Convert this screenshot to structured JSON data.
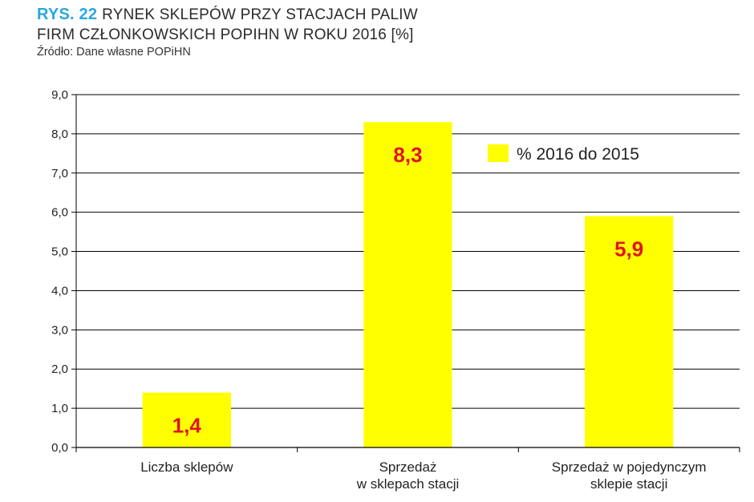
{
  "header": {
    "fig_num": "RYS. 22",
    "title_line1": "RYNEK SKLEPÓW PRZY STACJACH PALIW",
    "title_line2": "FIRM CZŁONKOWSKICH POPIHN W ROKU 2016 [%]",
    "source": "Źródło: Dane własne POPiHN"
  },
  "colors": {
    "fig_num": "#29a8e0",
    "bar": "#ffff00",
    "data_label": "#e0141e",
    "gridline": "#000000"
  },
  "chart_data": {
    "type": "bar",
    "categories": [
      [
        "Liczba sklepów"
      ],
      [
        "Sprzedaż",
        "w sklepach stacji"
      ],
      [
        "Sprzedaż w pojedynczym",
        "sklepie stacji"
      ]
    ],
    "series": [
      {
        "name": "% 2016 do 2015",
        "values": [
          1.4,
          8.3,
          5.9
        ]
      }
    ],
    "data_labels": [
      "1,4",
      "8,3",
      "5,9"
    ],
    "ylim": [
      0,
      9
    ],
    "yticks": [
      0,
      1,
      2,
      3,
      4,
      5,
      6,
      7,
      8,
      9
    ],
    "ytick_labels": [
      "0,0",
      "1,0",
      "2,0",
      "3,0",
      "4,0",
      "5,0",
      "6,0",
      "7,0",
      "8,0",
      "9,0"
    ],
    "grid": true,
    "legend": "top-right"
  }
}
